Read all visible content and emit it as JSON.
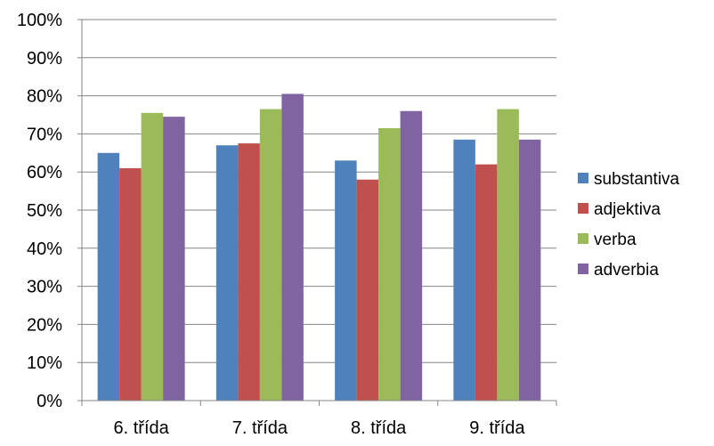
{
  "chart_data": {
    "type": "bar",
    "categories": [
      "6. třída",
      "7. třída",
      "8. třída",
      "9. třída"
    ],
    "series": [
      {
        "name": "substantiva",
        "color": "#4F81BD",
        "values": [
          65,
          67,
          63,
          68.5
        ]
      },
      {
        "name": "adjektiva",
        "color": "#C0504D",
        "values": [
          61,
          67.5,
          58,
          62
        ]
      },
      {
        "name": "verba",
        "color": "#9BBB59",
        "values": [
          75.5,
          76.5,
          71.5,
          76.5
        ]
      },
      {
        "name": "adverbia",
        "color": "#8064A2",
        "values": [
          74.5,
          80.5,
          76,
          68.5
        ]
      }
    ],
    "y_ticks": [
      "0%",
      "10%",
      "20%",
      "30%",
      "40%",
      "50%",
      "60%",
      "70%",
      "80%",
      "90%",
      "100%"
    ],
    "ylim": [
      0,
      100
    ],
    "y_step": 10,
    "grid": true,
    "legend_position": "right",
    "title": "",
    "xlabel": "",
    "ylabel": ""
  }
}
